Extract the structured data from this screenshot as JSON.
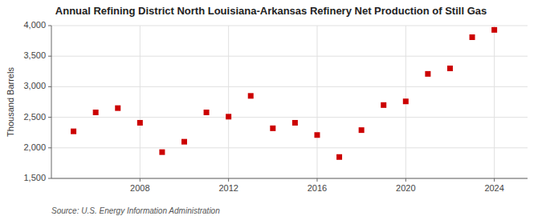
{
  "chart_data": {
    "type": "scatter",
    "title": "Annual Refining District North Louisiana-Arkansas Refinery Net Production of Still Gas",
    "y_label": "Thousand Barrels",
    "annotations": [
      "Source: U.S. Energy Information Administration"
    ],
    "x": [
      2005,
      2006,
      2007,
      2008,
      2009,
      2010,
      2011,
      2012,
      2013,
      2014,
      2015,
      2016,
      2017,
      2018,
      2019,
      2020,
      2021,
      2022,
      2023,
      2024
    ],
    "values": [
      2270,
      2580,
      2650,
      2410,
      1930,
      2100,
      2580,
      2510,
      2850,
      2320,
      2410,
      2210,
      1850,
      2290,
      2700,
      2760,
      3210,
      3300,
      3810,
      3930
    ],
    "color": "#cc0000",
    "marker": "square",
    "xlim": [
      2004,
      2025.5
    ],
    "xticks": [
      2008,
      2012,
      2016,
      2020,
      2024
    ],
    "ylim": [
      1500,
      4000
    ],
    "yticks": [
      {
        "value": 1500,
        "label": "1,500"
      },
      {
        "value": 2000,
        "label": "2,000"
      },
      {
        "value": 2500,
        "label": "2,500"
      },
      {
        "value": 3000,
        "label": "3,000"
      },
      {
        "value": 3500,
        "label": "3,500"
      },
      {
        "value": 4000,
        "label": "4,000"
      }
    ],
    "grid": true
  }
}
